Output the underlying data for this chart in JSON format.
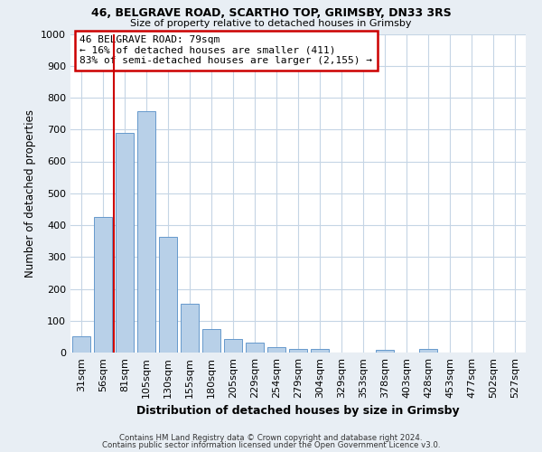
{
  "title1": "46, BELGRAVE ROAD, SCARTHO TOP, GRIMSBY, DN33 3RS",
  "title2": "Size of property relative to detached houses in Grimsby",
  "xlabel": "Distribution of detached houses by size in Grimsby",
  "ylabel": "Number of detached properties",
  "bar_labels": [
    "31sqm",
    "56sqm",
    "81sqm",
    "105sqm",
    "130sqm",
    "155sqm",
    "180sqm",
    "205sqm",
    "229sqm",
    "254sqm",
    "279sqm",
    "304sqm",
    "329sqm",
    "353sqm",
    "378sqm",
    "403sqm",
    "428sqm",
    "453sqm",
    "477sqm",
    "502sqm",
    "527sqm"
  ],
  "bar_values": [
    52,
    425,
    688,
    758,
    363,
    153,
    75,
    42,
    32,
    18,
    11,
    10,
    0,
    0,
    8,
    0,
    10,
    0,
    0,
    0,
    0
  ],
  "bar_color": "#b8d0e8",
  "bar_edge_color": "#6699cc",
  "vline_color": "#cc0000",
  "ylim": [
    0,
    1000
  ],
  "yticks": [
    0,
    100,
    200,
    300,
    400,
    500,
    600,
    700,
    800,
    900,
    1000
  ],
  "annotation_title": "46 BELGRAVE ROAD: 79sqm",
  "annotation_line1": "← 16% of detached houses are smaller (411)",
  "annotation_line2": "83% of semi-detached houses are larger (2,155) →",
  "annotation_box_color": "#cc0000",
  "grid_color": "#c5d5e5",
  "plot_bg_color": "#ffffff",
  "fig_bg_color": "#e8eef4",
  "footer1": "Contains HM Land Registry data © Crown copyright and database right 2024.",
  "footer2": "Contains public sector information licensed under the Open Government Licence v3.0."
}
